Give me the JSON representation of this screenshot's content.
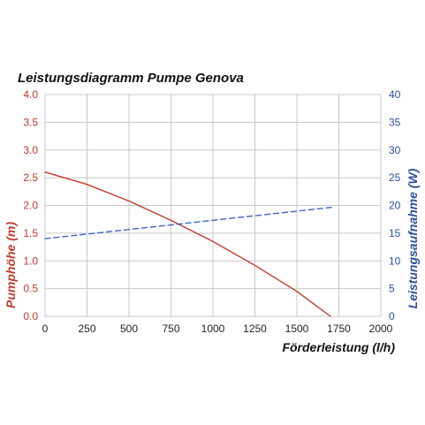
{
  "chart_data": {
    "type": "line",
    "title": "Leistungsdiagramm Pumpe Genova",
    "xlabel": "Förderleistung (l/h)",
    "ylabel": "Pumphöhe (m)",
    "y2label": "Leistungsaufnahme (W)",
    "xlim": [
      0,
      2000
    ],
    "ylim": [
      0,
      4.0
    ],
    "y2lim": [
      0,
      40
    ],
    "x_ticks": [
      "0",
      "250",
      "500",
      "750",
      "1000",
      "1250",
      "1500",
      "1750",
      "2000"
    ],
    "y_ticks": [
      "0.0",
      "0.5",
      "1.0",
      "1.5",
      "2.0",
      "2.5",
      "3.0",
      "3.5",
      "4.0"
    ],
    "y2_ticks": [
      "0",
      "5",
      "10",
      "15",
      "20",
      "25",
      "30",
      "35",
      "40"
    ],
    "grid": true,
    "series": [
      {
        "axis": "left",
        "style": "solid",
        "color": "#c0392b",
        "x": [
          0,
          250,
          500,
          750,
          1000,
          1250,
          1500,
          1700
        ],
        "y": [
          2.6,
          2.38,
          2.08,
          1.73,
          1.35,
          0.92,
          0.45,
          0.0
        ]
      },
      {
        "axis": "right",
        "style": "dashed",
        "color": "#3a66c4",
        "x": [
          0,
          1720
        ],
        "y": [
          14,
          19.7
        ]
      }
    ]
  }
}
